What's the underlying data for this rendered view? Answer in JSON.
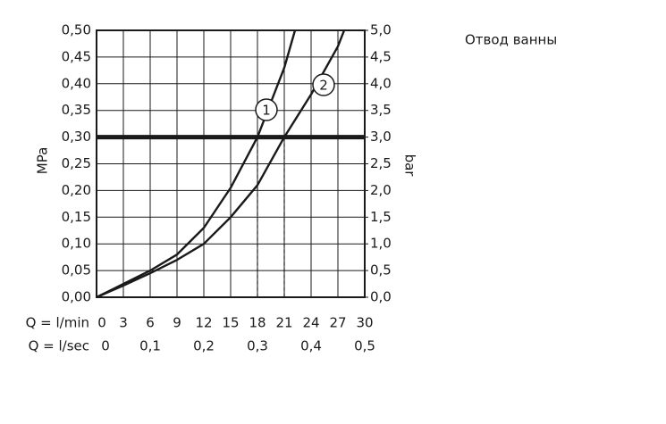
{
  "chart_data": {
    "type": "line",
    "title": "Отвод ванны",
    "ylabel": "MPa",
    "y2label": "bar",
    "xlabel": "Q = l/min",
    "x2label": "Q = l/sec",
    "xlim": [
      0,
      30
    ],
    "xticks": [
      0,
      3,
      6,
      9,
      12,
      15,
      18,
      21,
      24,
      27,
      30
    ],
    "x2lim": [
      0,
      0.5
    ],
    "x2ticks": [
      0,
      {
        "value": 0.1,
        "label": "0,1"
      },
      {
        "value": 0.2,
        "label": "0,2"
      },
      {
        "value": 0.3,
        "label": "0,3"
      },
      {
        "value": 0.4,
        "label": "0,4"
      },
      {
        "value": 0.5,
        "label": "0,5"
      }
    ],
    "ylim": [
      0,
      0.5
    ],
    "yticks": [
      {
        "value": 0,
        "label": "0,00"
      },
      {
        "value": 0.05,
        "label": "0,05"
      },
      {
        "value": 0.1,
        "label": "0,10"
      },
      {
        "value": 0.15,
        "label": "0,15"
      },
      {
        "value": 0.2,
        "label": "0,20"
      },
      {
        "value": 0.25,
        "label": "0,25"
      },
      {
        "value": 0.3,
        "label": "0,30"
      },
      {
        "value": 0.35,
        "label": "0,35"
      },
      {
        "value": 0.4,
        "label": "0,40"
      },
      {
        "value": 0.45,
        "label": "0,45"
      },
      {
        "value": 0.5,
        "label": "0,50"
      }
    ],
    "y2lim": [
      0,
      5
    ],
    "y2ticks": [
      {
        "value": 0,
        "label": "0,0"
      },
      {
        "value": 0.5,
        "label": "0,5"
      },
      {
        "value": 1,
        "label": "1,0"
      },
      {
        "value": 1.5,
        "label": "1,5"
      },
      {
        "value": 2,
        "label": "2,0"
      },
      {
        "value": 2.5,
        "label": "2,5"
      },
      {
        "value": 3,
        "label": "3,0"
      },
      {
        "value": 3.5,
        "label": "3,5"
      },
      {
        "value": 4,
        "label": "4,0"
      },
      {
        "value": 4.5,
        "label": "4,5"
      },
      {
        "value": 5,
        "label": "5,0"
      }
    ],
    "grid": true,
    "threshold": 0.3,
    "crossings": [
      18,
      21
    ],
    "series": [
      {
        "name": "1",
        "color": "#1a1a1a",
        "x": [
          0,
          3,
          6,
          9,
          12,
          15,
          18,
          21,
          22.2
        ],
        "values": [
          0,
          0.025,
          0.05,
          0.08,
          0.13,
          0.205,
          0.3,
          0.43,
          0.5
        ]
      },
      {
        "name": "2",
        "color": "#1a1a1a",
        "x": [
          0,
          3,
          6,
          9,
          12,
          15,
          18,
          21,
          24,
          27,
          27.7
        ],
        "values": [
          0,
          0.022,
          0.045,
          0.07,
          0.1,
          0.15,
          0.21,
          0.3,
          0.38,
          0.47,
          0.5
        ]
      }
    ]
  }
}
